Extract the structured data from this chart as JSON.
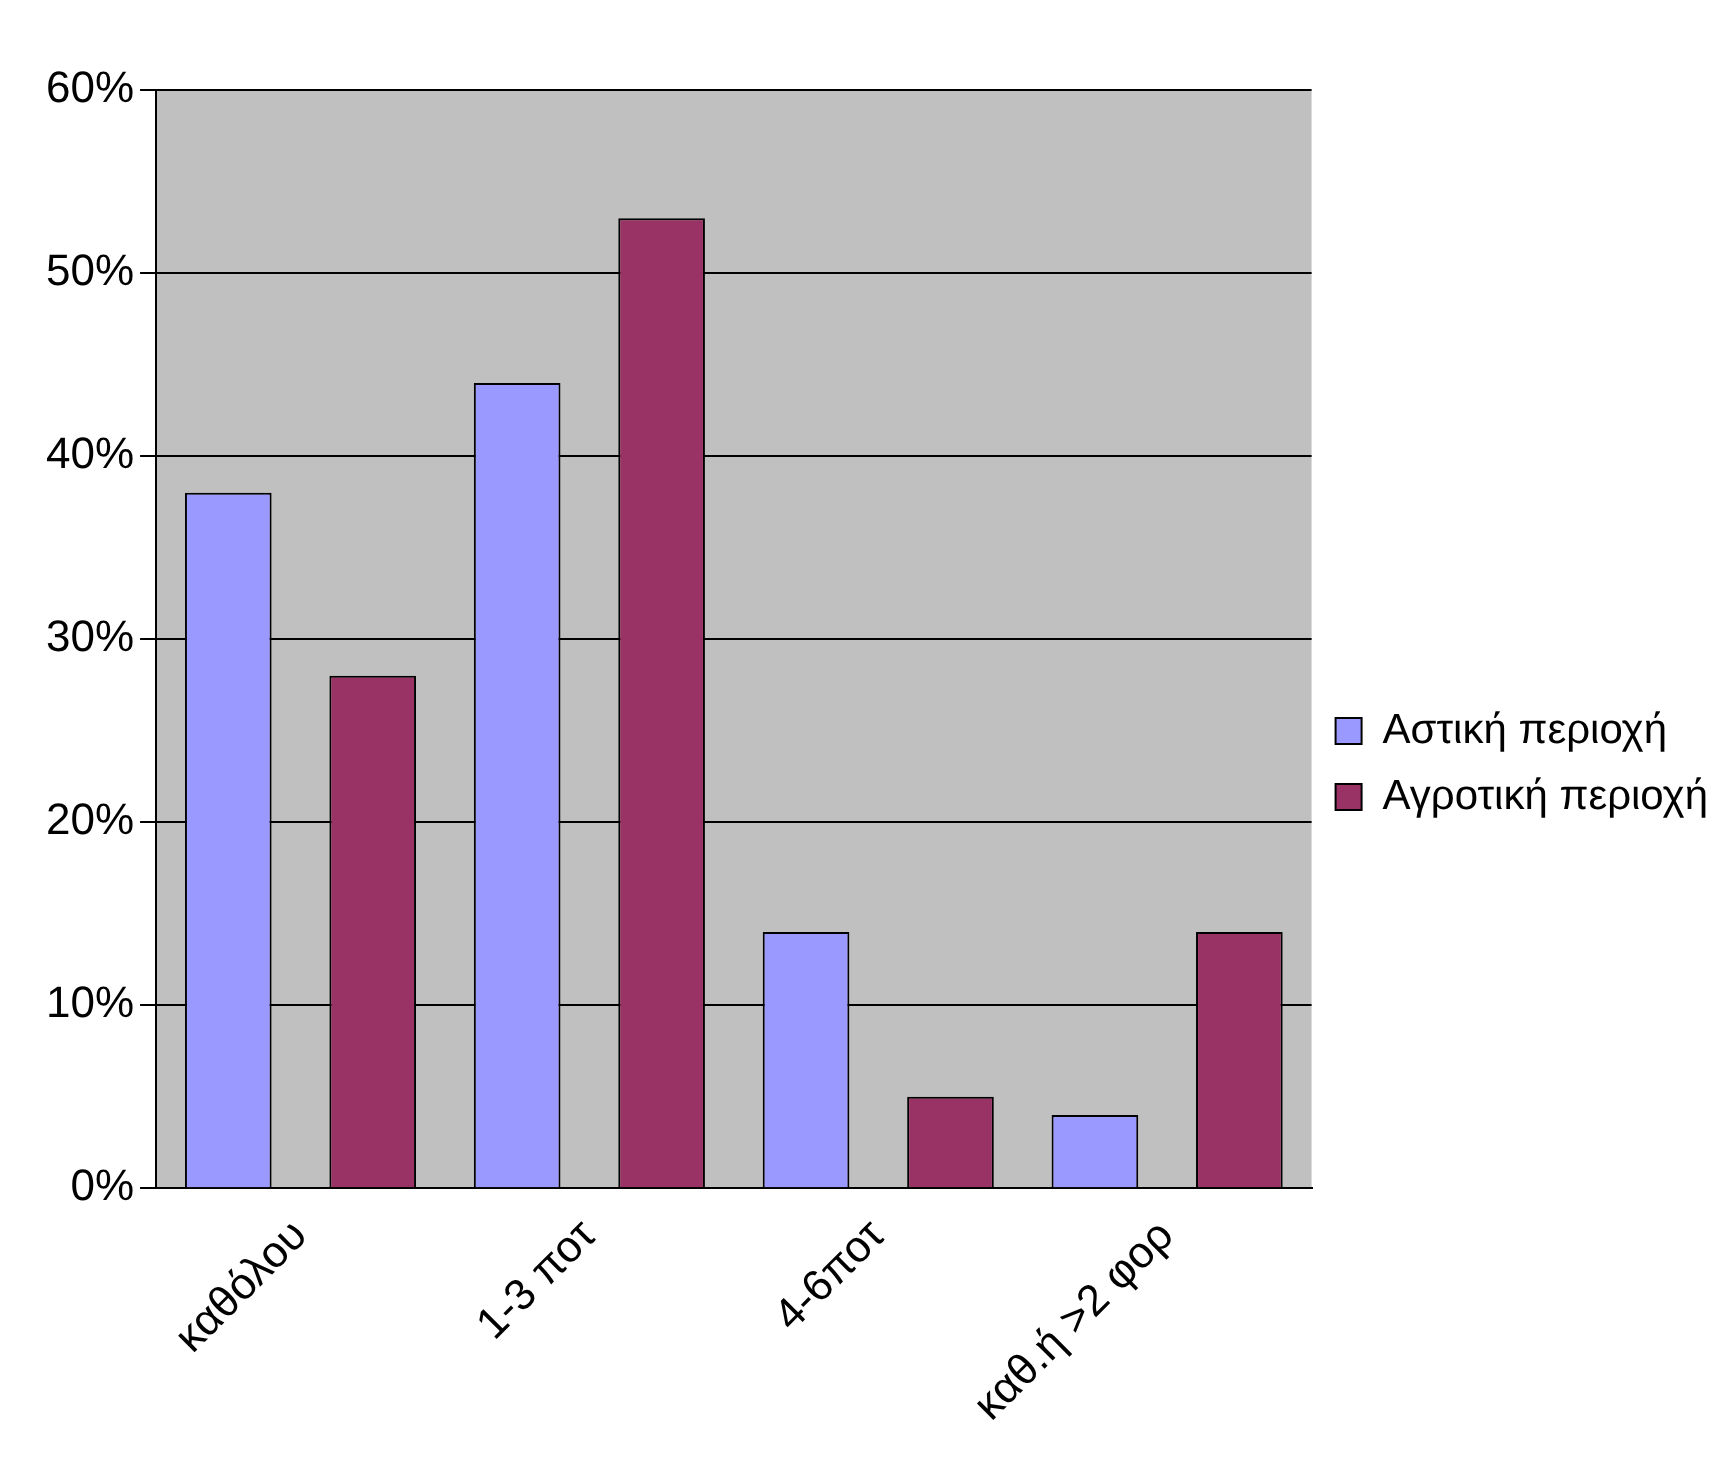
{
  "chart_data": {
    "type": "bar",
    "categories": [
      "καθόλου",
      "1-3 ποτ",
      "4-6ποτ",
      "καθ.ή >2 φορ"
    ],
    "series": [
      {
        "name": "Αστική περιοχή",
        "color": "#9999ff",
        "values": [
          38,
          44,
          14,
          4
        ]
      },
      {
        "name": "Αγροτική περιοχή",
        "color": "#993366",
        "values": [
          28,
          53,
          5,
          14
        ]
      }
    ],
    "ylim": [
      0,
      60
    ],
    "yticks": [
      {
        "value": 0,
        "label": "0%"
      },
      {
        "value": 10,
        "label": "10%"
      },
      {
        "value": 20,
        "label": "20%"
      },
      {
        "value": 30,
        "label": "30%"
      },
      {
        "value": 40,
        "label": "40%"
      },
      {
        "value": 50,
        "label": "50%"
      },
      {
        "value": 60,
        "label": "60%"
      }
    ],
    "grid": "y",
    "legend": "right"
  }
}
